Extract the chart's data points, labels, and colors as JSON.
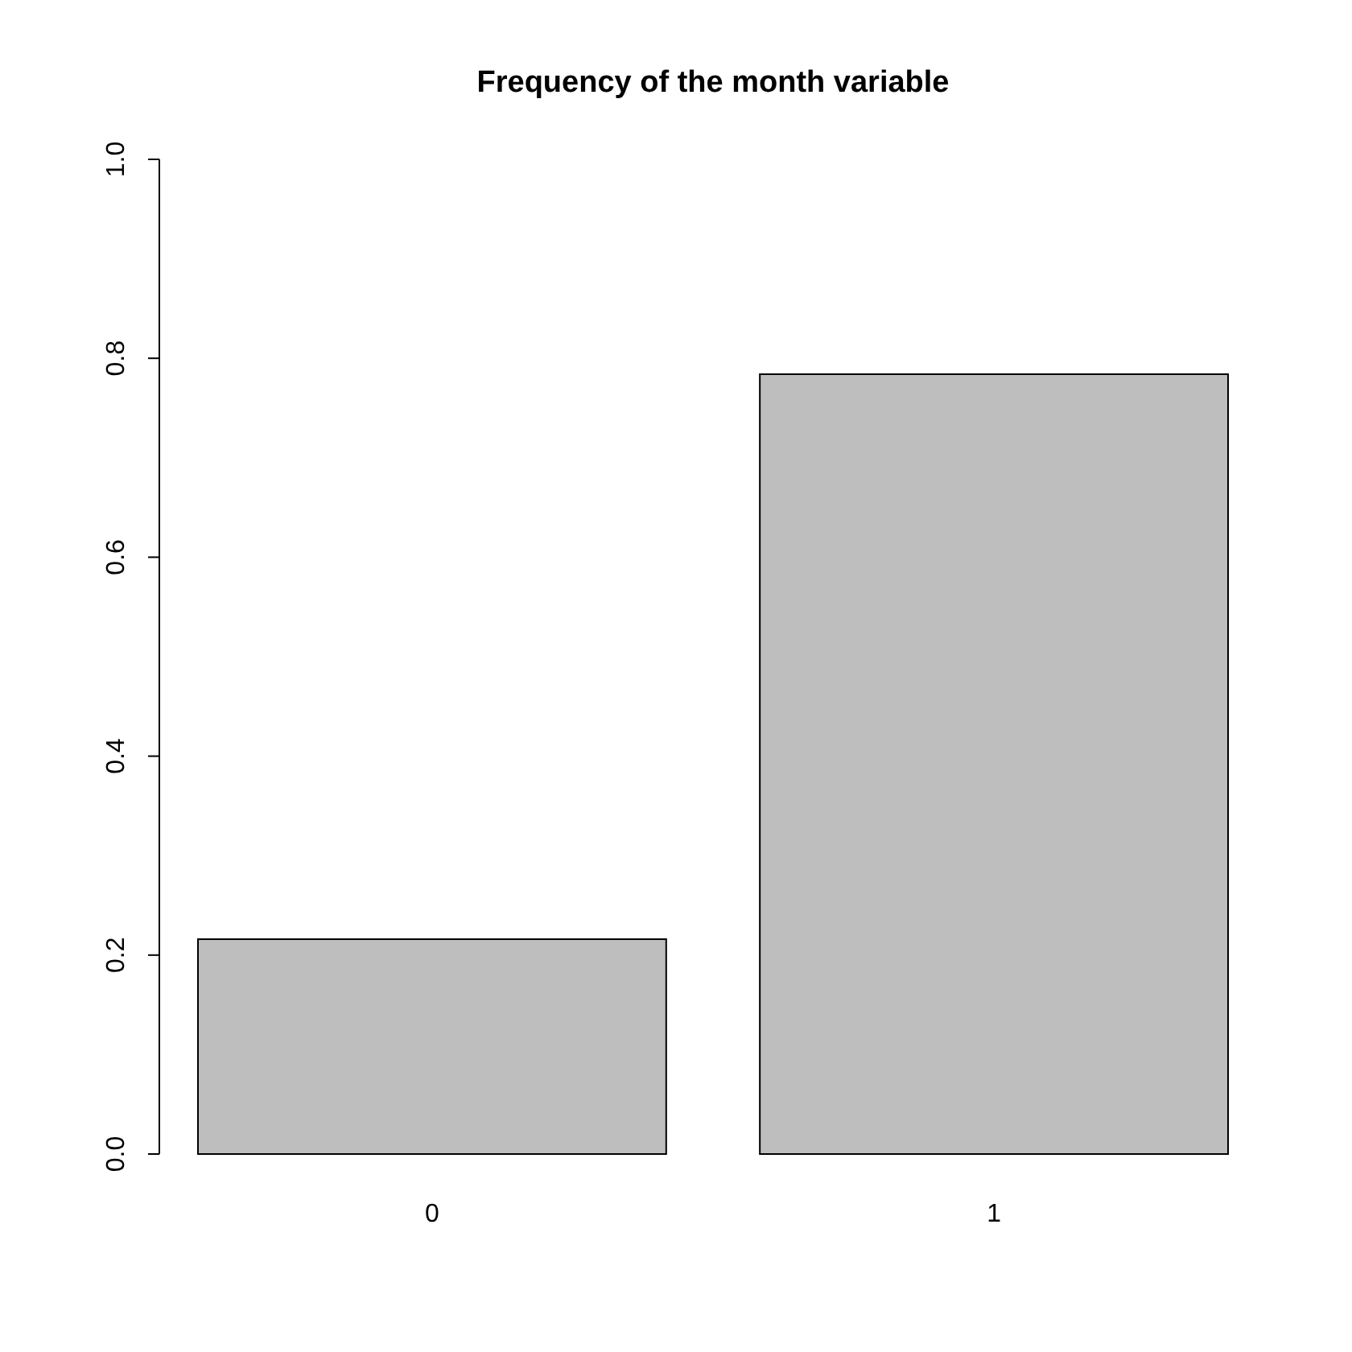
{
  "chart_data": {
    "type": "bar",
    "title": "Frequency of the month variable",
    "categories": [
      "0",
      "1"
    ],
    "values": [
      0.216,
      0.784
    ],
    "color": "#bebebe",
    "ylim": [
      0,
      1
    ],
    "yticks": [
      {
        "value": 0,
        "label": "0.0"
      },
      {
        "value": 0.2,
        "label": "0.2"
      },
      {
        "value": 0.4,
        "label": "0.4"
      },
      {
        "value": 0.6,
        "label": "0.6"
      },
      {
        "value": 0.8,
        "label": "0.8"
      },
      {
        "value": 1,
        "label": "1.0"
      }
    ],
    "grid": false
  }
}
